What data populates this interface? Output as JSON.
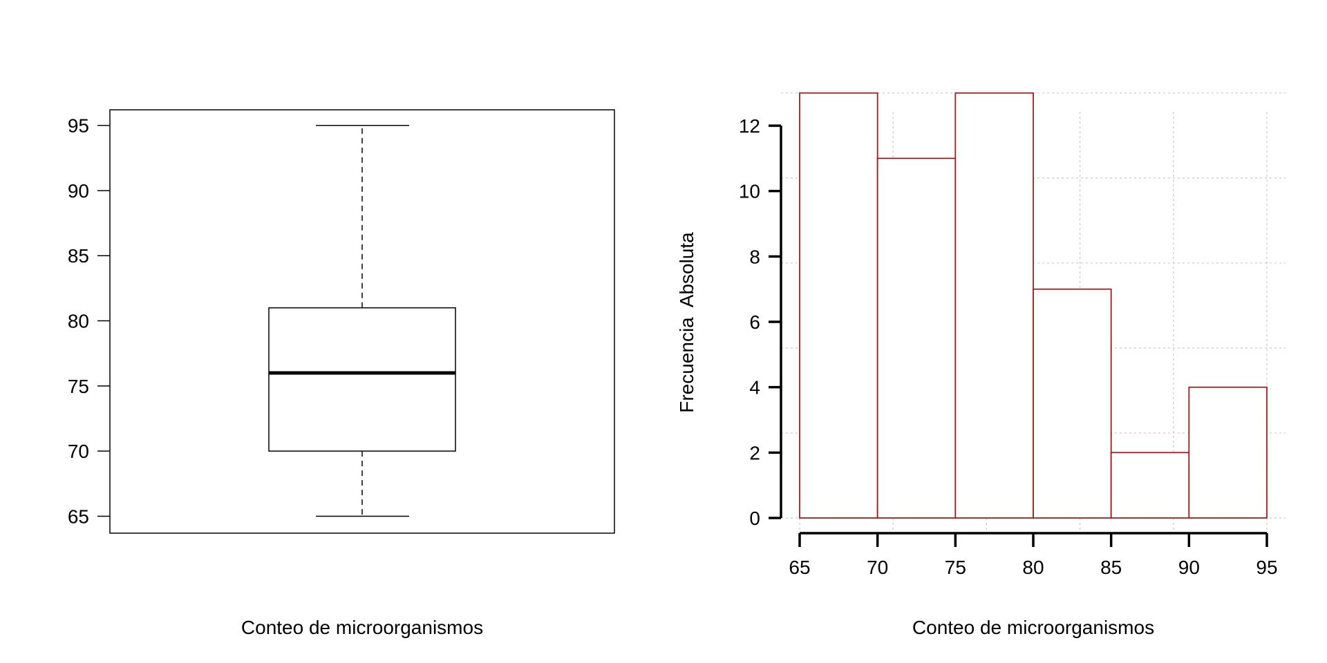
{
  "chart_data": [
    {
      "type": "box",
      "xlabel": "Conteo de microorganismos",
      "ylim": [
        63.7,
        96.2
      ],
      "yticks": [
        65,
        70,
        75,
        80,
        85,
        90,
        95
      ],
      "stats": {
        "min": 65,
        "q1": 70,
        "median": 76,
        "q3": 81,
        "max": 95
      },
      "frame": true
    },
    {
      "type": "histogram",
      "xlabel": "Conteo de microorganismos",
      "ylabel": "Frecuencia  Absoluta",
      "bins": [
        {
          "from": 65,
          "to": 70,
          "count": 13
        },
        {
          "from": 70,
          "to": 75,
          "count": 11
        },
        {
          "from": 75,
          "to": 80,
          "count": 13
        },
        {
          "from": 80,
          "to": 85,
          "count": 7
        },
        {
          "from": 85,
          "to": 90,
          "count": 2
        },
        {
          "from": 90,
          "to": 95,
          "count": 4
        }
      ],
      "xticks": [
        65,
        70,
        75,
        80,
        85,
        90,
        95
      ],
      "yticks": [
        0,
        2,
        4,
        6,
        8,
        10,
        12
      ],
      "xlim": [
        65,
        95
      ],
      "ylim": [
        0,
        13
      ],
      "grid": true,
      "bar_color": "#a01c1c"
    }
  ]
}
